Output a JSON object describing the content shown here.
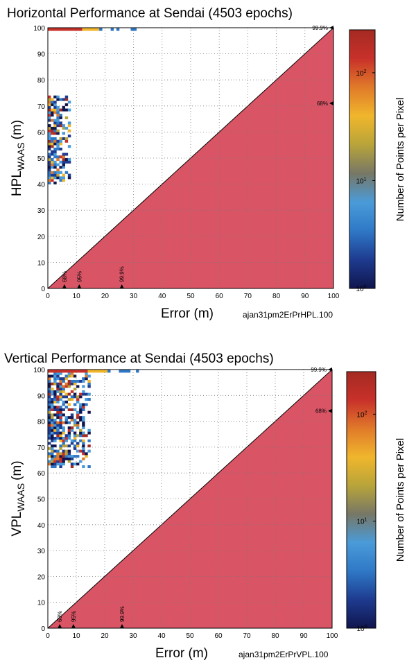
{
  "chart_data": [
    {
      "type": "heatmap",
      "title": "Horizontal Performance at Sendai (4503 epochs)",
      "xlabel": "Error (m)",
      "ylabel_main": "HPL",
      "ylabel_sub": "WAAS",
      "ylabel_unit": "(m)",
      "colorbar_label": "Number of Points per Pixel",
      "colorbar_scale": "log",
      "colorbar_range": [
        1,
        250
      ],
      "colorbar_ticks": [
        {
          "base": "10",
          "exp": "0",
          "value": 1
        },
        {
          "base": "10",
          "exp": "1",
          "value": 10
        },
        {
          "base": "10",
          "exp": "2",
          "value": 100
        }
      ],
      "source_tag": "ajan31pm2ErPrHPL.100",
      "xlim": [
        0,
        100
      ],
      "ylim": [
        0,
        100
      ],
      "x_ticks": [
        "0",
        "10",
        "20",
        "30",
        "40",
        "50",
        "60",
        "70",
        "80",
        "90",
        "100"
      ],
      "y_ticks": [
        "0",
        "10",
        "20",
        "30",
        "40",
        "50",
        "60",
        "70",
        "80",
        "90",
        "100"
      ],
      "grid": true,
      "error_percentile_markers": [
        {
          "label": "68%",
          "x": 5.8
        },
        {
          "label": "95%",
          "x": 11.0
        },
        {
          "label": "99.9%",
          "x": 25.9
        }
      ],
      "bound_percentile_markers": [
        {
          "label": "68%",
          "y": 71
        },
        {
          "label": "99.9%",
          "y": 100
        }
      ],
      "cluster_error_range": [
        0,
        7
      ],
      "cluster_bound_range": [
        40,
        73
      ],
      "top_row_error_range": [
        0,
        30
      ],
      "top_row_bound": 100
    },
    {
      "type": "heatmap",
      "title": "Vertical Performance at Sendai (4503 epochs)",
      "xlabel": "Error (m)",
      "ylabel_main": "VPL",
      "ylabel_sub": "WAAS",
      "ylabel_unit": "(m)",
      "colorbar_label": "Number of Points per Pixel",
      "colorbar_scale": "log",
      "colorbar_range": [
        1,
        250
      ],
      "colorbar_ticks": [
        {
          "base": "10",
          "exp": "0",
          "value": 1
        },
        {
          "base": "10",
          "exp": "1",
          "value": 10
        },
        {
          "base": "10",
          "exp": "2",
          "value": 100
        }
      ],
      "source_tag": "ajan31pm2ErPrVPL.100",
      "xlim": [
        0,
        100
      ],
      "ylim": [
        0,
        100
      ],
      "x_ticks": [
        "0",
        "10",
        "20",
        "30",
        "40",
        "50",
        "60",
        "70",
        "80",
        "90",
        "100"
      ],
      "y_ticks": [
        "0",
        "10",
        "20",
        "30",
        "40",
        "50",
        "60",
        "70",
        "80",
        "90",
        "100"
      ],
      "grid": true,
      "error_percentile_markers": [
        {
          "label": "68%",
          "x": 4.2
        },
        {
          "label": "95%",
          "x": 9.0
        },
        {
          "label": "99.9%",
          "x": 26.1
        }
      ],
      "bound_percentile_markers": [
        {
          "label": "68%",
          "y": 84
        },
        {
          "label": "99.9%",
          "y": 100
        }
      ],
      "cluster_error_range": [
        0,
        14
      ],
      "cluster_bound_range": [
        62,
        99
      ],
      "top_row_error_range": [
        0,
        34
      ],
      "top_row_bound": 100
    }
  ],
  "colors": {
    "region_fill": "#d95565",
    "grid": "#777777",
    "colormap": [
      "#10154e",
      "#1e3b8f",
      "#2f78c6",
      "#4a9bd9",
      "#777766",
      "#b8a43a",
      "#f0b62c",
      "#e07a2a",
      "#c8312a",
      "#a42a22"
    ]
  }
}
